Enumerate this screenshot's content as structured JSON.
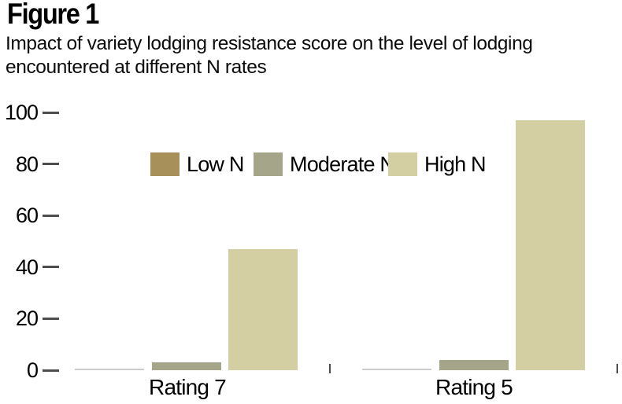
{
  "figure": {
    "title": "Figure 1",
    "subtitle": "Impact of variety lodging resistance score on the level of lodging encountered at different N rates"
  },
  "chart_data": {
    "type": "bar",
    "title": "Figure 1",
    "subtitle": "Impact of variety lodging resistance score on the level of lodging encountered at different N rates",
    "categories": [
      "Rating 7",
      "Rating 5"
    ],
    "series": [
      {
        "name": "Low N",
        "color": "#a8905a",
        "values": [
          0,
          0
        ]
      },
      {
        "name": "Moderate N",
        "color": "#a5a589",
        "values": [
          3,
          4
        ]
      },
      {
        "name": "High N",
        "color": "#d4cfa2",
        "values": [
          47,
          97
        ]
      }
    ],
    "xlabel": "",
    "ylabel": "",
    "ylim": [
      0,
      100
    ],
    "yticks": [
      0,
      20,
      40,
      60,
      80,
      100
    ],
    "grid": false,
    "legend_position": "top-inside",
    "colors": {
      "tick": "#4d4d4d",
      "zero_bar_line": "#cccccc",
      "text": "#000000",
      "background": "#ffffff"
    }
  }
}
